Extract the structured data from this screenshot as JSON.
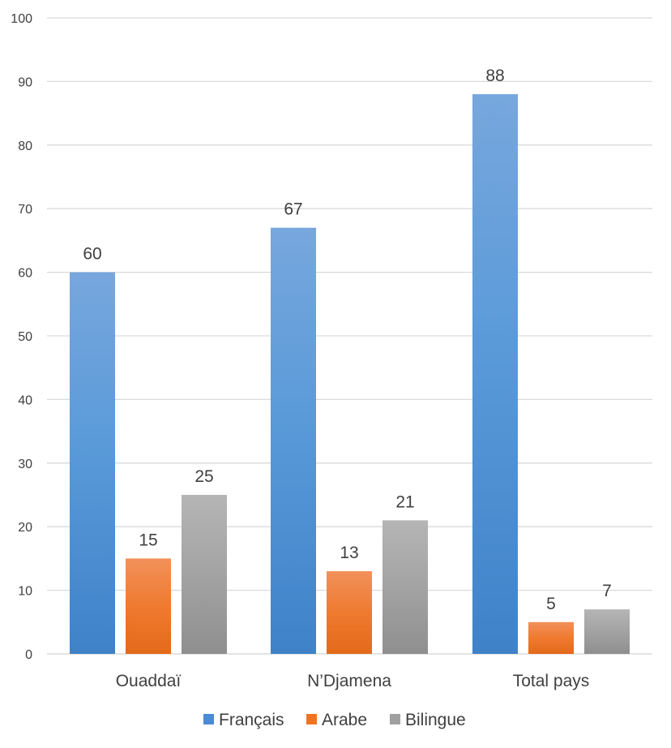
{
  "chart_data": {
    "type": "bar",
    "categories": [
      "Ouaddaï",
      "N’Djamena",
      "Total pays"
    ],
    "series": [
      {
        "name": "Français",
        "values": [
          60,
          67,
          88
        ],
        "labels": [
          "60",
          "67",
          "88"
        ],
        "color": "#4a8bd3"
      },
      {
        "name": "Arabe",
        "values": [
          15,
          13,
          5
        ],
        "labels": [
          "15",
          "13",
          "5"
        ],
        "color": "#ee7424"
      },
      {
        "name": "Bilingue",
        "values": [
          25,
          21,
          7
        ],
        "labels": [
          "25",
          "21",
          "7"
        ],
        "color": "#a0a0a0"
      }
    ],
    "ylim": [
      0,
      100
    ],
    "yticks": [
      0,
      10,
      20,
      30,
      40,
      50,
      60,
      70,
      80,
      90,
      100
    ],
    "grid": true,
    "legend": "bottom-center"
  }
}
